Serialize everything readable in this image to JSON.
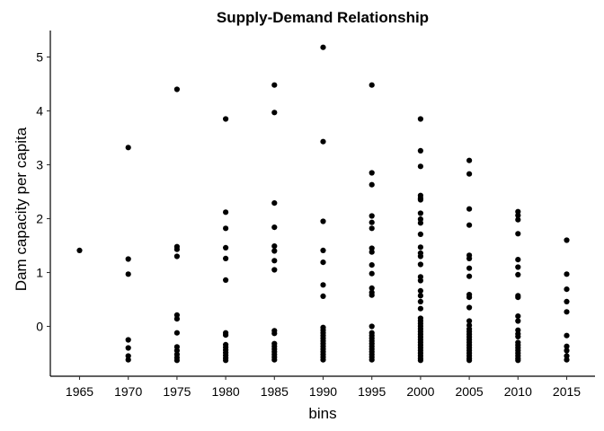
{
  "chart_data": {
    "type": "scatter",
    "title": "Supply-Demand Relationship",
    "xlabel": "bins",
    "ylabel": "Dam capacity per capita",
    "x_ticks": [
      "1965",
      "1970",
      "1975",
      "1980",
      "1985",
      "1990",
      "1995",
      "2000",
      "2005",
      "2010",
      "2015"
    ],
    "y_ticks": [
      "0",
      "1",
      "2",
      "3",
      "4",
      "5"
    ],
    "ylim": [
      -0.92,
      5.5
    ],
    "grid": false,
    "marker_color": "#000000",
    "points": [
      {
        "x": "1965",
        "y": 1.41
      },
      {
        "x": "1970",
        "y": 3.32
      },
      {
        "x": "1970",
        "y": 1.25
      },
      {
        "x": "1970",
        "y": 0.97
      },
      {
        "x": "1970",
        "y": -0.25
      },
      {
        "x": "1970",
        "y": -0.4
      },
      {
        "x": "1970",
        "y": -0.55
      },
      {
        "x": "1970",
        "y": -0.62
      },
      {
        "x": "1975",
        "y": 4.4
      },
      {
        "x": "1975",
        "y": 1.48
      },
      {
        "x": "1975",
        "y": 1.43
      },
      {
        "x": "1975",
        "y": 1.3
      },
      {
        "x": "1975",
        "y": 0.21
      },
      {
        "x": "1975",
        "y": 0.14
      },
      {
        "x": "1975",
        "y": -0.12
      },
      {
        "x": "1975",
        "y": -0.38
      },
      {
        "x": "1975",
        "y": -0.45
      },
      {
        "x": "1975",
        "y": -0.52
      },
      {
        "x": "1975",
        "y": -0.58
      },
      {
        "x": "1975",
        "y": -0.63
      },
      {
        "x": "1980",
        "y": 3.85
      },
      {
        "x": "1980",
        "y": 2.12
      },
      {
        "x": "1980",
        "y": 1.82
      },
      {
        "x": "1980",
        "y": 1.46
      },
      {
        "x": "1980",
        "y": 1.26
      },
      {
        "x": "1980",
        "y": 0.86
      },
      {
        "x": "1980",
        "y": -0.12
      },
      {
        "x": "1980",
        "y": -0.16
      },
      {
        "x": "1980",
        "y": -0.34
      },
      {
        "x": "1980",
        "y": -0.39
      },
      {
        "x": "1980",
        "y": -0.44
      },
      {
        "x": "1980",
        "y": -0.49
      },
      {
        "x": "1980",
        "y": -0.54
      },
      {
        "x": "1980",
        "y": -0.59
      },
      {
        "x": "1980",
        "y": -0.63
      },
      {
        "x": "1985",
        "y": 4.48
      },
      {
        "x": "1985",
        "y": 3.97
      },
      {
        "x": "1985",
        "y": 2.29
      },
      {
        "x": "1985",
        "y": 1.84
      },
      {
        "x": "1985",
        "y": 1.49
      },
      {
        "x": "1985",
        "y": 1.4
      },
      {
        "x": "1985",
        "y": 1.22
      },
      {
        "x": "1985",
        "y": 1.05
      },
      {
        "x": "1985",
        "y": -0.08
      },
      {
        "x": "1985",
        "y": -0.13
      },
      {
        "x": "1985",
        "y": -0.32
      },
      {
        "x": "1985",
        "y": -0.37
      },
      {
        "x": "1985",
        "y": -0.42
      },
      {
        "x": "1985",
        "y": -0.47
      },
      {
        "x": "1985",
        "y": -0.52
      },
      {
        "x": "1985",
        "y": -0.57
      },
      {
        "x": "1985",
        "y": -0.62
      },
      {
        "x": "1990",
        "y": 5.18
      },
      {
        "x": "1990",
        "y": 3.43
      },
      {
        "x": "1990",
        "y": 1.95
      },
      {
        "x": "1990",
        "y": 1.41
      },
      {
        "x": "1990",
        "y": 1.19
      },
      {
        "x": "1990",
        "y": 0.77
      },
      {
        "x": "1990",
        "y": 0.56
      },
      {
        "x": "1990",
        "y": -0.02
      },
      {
        "x": "1990",
        "y": -0.07
      },
      {
        "x": "1990",
        "y": -0.12
      },
      {
        "x": "1990",
        "y": -0.17
      },
      {
        "x": "1990",
        "y": -0.22
      },
      {
        "x": "1990",
        "y": -0.27
      },
      {
        "x": "1990",
        "y": -0.32
      },
      {
        "x": "1990",
        "y": -0.37
      },
      {
        "x": "1990",
        "y": -0.42
      },
      {
        "x": "1990",
        "y": -0.47
      },
      {
        "x": "1990",
        "y": -0.52
      },
      {
        "x": "1990",
        "y": -0.57
      },
      {
        "x": "1990",
        "y": -0.62
      },
      {
        "x": "1995",
        "y": 4.48
      },
      {
        "x": "1995",
        "y": 2.85
      },
      {
        "x": "1995",
        "y": 2.63
      },
      {
        "x": "1995",
        "y": 2.05
      },
      {
        "x": "1995",
        "y": 1.93
      },
      {
        "x": "1995",
        "y": 1.82
      },
      {
        "x": "1995",
        "y": 1.45
      },
      {
        "x": "1995",
        "y": 1.38
      },
      {
        "x": "1995",
        "y": 1.14
      },
      {
        "x": "1995",
        "y": 0.98
      },
      {
        "x": "1995",
        "y": 0.71
      },
      {
        "x": "1995",
        "y": 0.63
      },
      {
        "x": "1995",
        "y": 0.58
      },
      {
        "x": "1995",
        "y": 0.0
      },
      {
        "x": "1995",
        "y": -0.12
      },
      {
        "x": "1995",
        "y": -0.17
      },
      {
        "x": "1995",
        "y": -0.22
      },
      {
        "x": "1995",
        "y": -0.27
      },
      {
        "x": "1995",
        "y": -0.32
      },
      {
        "x": "1995",
        "y": -0.37
      },
      {
        "x": "1995",
        "y": -0.42
      },
      {
        "x": "1995",
        "y": -0.47
      },
      {
        "x": "1995",
        "y": -0.52
      },
      {
        "x": "1995",
        "y": -0.57
      },
      {
        "x": "1995",
        "y": -0.62
      },
      {
        "x": "2000",
        "y": 3.85
      },
      {
        "x": "2000",
        "y": 3.26
      },
      {
        "x": "2000",
        "y": 2.97
      },
      {
        "x": "2000",
        "y": 2.43
      },
      {
        "x": "2000",
        "y": 2.38
      },
      {
        "x": "2000",
        "y": 2.35
      },
      {
        "x": "2000",
        "y": 2.1
      },
      {
        "x": "2000",
        "y": 1.99
      },
      {
        "x": "2000",
        "y": 1.92
      },
      {
        "x": "2000",
        "y": 1.71
      },
      {
        "x": "2000",
        "y": 1.47
      },
      {
        "x": "2000",
        "y": 1.36
      },
      {
        "x": "2000",
        "y": 1.3
      },
      {
        "x": "2000",
        "y": 1.15
      },
      {
        "x": "2000",
        "y": 0.92
      },
      {
        "x": "2000",
        "y": 0.85
      },
      {
        "x": "2000",
        "y": 0.66
      },
      {
        "x": "2000",
        "y": 0.57
      },
      {
        "x": "2000",
        "y": 0.46
      },
      {
        "x": "2000",
        "y": 0.33
      },
      {
        "x": "2000",
        "y": 0.15
      },
      {
        "x": "2000",
        "y": 0.1
      },
      {
        "x": "2000",
        "y": 0.05
      },
      {
        "x": "2000",
        "y": 0.0
      },
      {
        "x": "2000",
        "y": -0.05
      },
      {
        "x": "2000",
        "y": -0.1
      },
      {
        "x": "2000",
        "y": -0.15
      },
      {
        "x": "2000",
        "y": -0.2
      },
      {
        "x": "2000",
        "y": -0.25
      },
      {
        "x": "2000",
        "y": -0.3
      },
      {
        "x": "2000",
        "y": -0.35
      },
      {
        "x": "2000",
        "y": -0.4
      },
      {
        "x": "2000",
        "y": -0.45
      },
      {
        "x": "2000",
        "y": -0.5
      },
      {
        "x": "2000",
        "y": -0.55
      },
      {
        "x": "2000",
        "y": -0.6
      },
      {
        "x": "2000",
        "y": -0.63
      },
      {
        "x": "2005",
        "y": 3.08
      },
      {
        "x": "2005",
        "y": 2.83
      },
      {
        "x": "2005",
        "y": 2.18
      },
      {
        "x": "2005",
        "y": 1.88
      },
      {
        "x": "2005",
        "y": 1.32
      },
      {
        "x": "2005",
        "y": 1.26
      },
      {
        "x": "2005",
        "y": 1.08
      },
      {
        "x": "2005",
        "y": 0.93
      },
      {
        "x": "2005",
        "y": 0.59
      },
      {
        "x": "2005",
        "y": 0.54
      },
      {
        "x": "2005",
        "y": 0.35
      },
      {
        "x": "2005",
        "y": 0.1
      },
      {
        "x": "2005",
        "y": 0.02
      },
      {
        "x": "2005",
        "y": -0.05
      },
      {
        "x": "2005",
        "y": -0.1
      },
      {
        "x": "2005",
        "y": -0.15
      },
      {
        "x": "2005",
        "y": -0.2
      },
      {
        "x": "2005",
        "y": -0.25
      },
      {
        "x": "2005",
        "y": -0.3
      },
      {
        "x": "2005",
        "y": -0.35
      },
      {
        "x": "2005",
        "y": -0.4
      },
      {
        "x": "2005",
        "y": -0.45
      },
      {
        "x": "2005",
        "y": -0.5
      },
      {
        "x": "2005",
        "y": -0.55
      },
      {
        "x": "2005",
        "y": -0.6
      },
      {
        "x": "2005",
        "y": -0.63
      },
      {
        "x": "2010",
        "y": 2.13
      },
      {
        "x": "2010",
        "y": 2.06
      },
      {
        "x": "2010",
        "y": 1.98
      },
      {
        "x": "2010",
        "y": 1.72
      },
      {
        "x": "2010",
        "y": 1.24
      },
      {
        "x": "2010",
        "y": 1.1
      },
      {
        "x": "2010",
        "y": 0.96
      },
      {
        "x": "2010",
        "y": 0.57
      },
      {
        "x": "2010",
        "y": 0.54
      },
      {
        "x": "2010",
        "y": 0.19
      },
      {
        "x": "2010",
        "y": 0.1
      },
      {
        "x": "2010",
        "y": -0.07
      },
      {
        "x": "2010",
        "y": -0.14
      },
      {
        "x": "2010",
        "y": -0.19
      },
      {
        "x": "2010",
        "y": -0.3
      },
      {
        "x": "2010",
        "y": -0.35
      },
      {
        "x": "2010",
        "y": -0.4
      },
      {
        "x": "2010",
        "y": -0.45
      },
      {
        "x": "2010",
        "y": -0.5
      },
      {
        "x": "2010",
        "y": -0.55
      },
      {
        "x": "2010",
        "y": -0.6
      },
      {
        "x": "2010",
        "y": -0.63
      },
      {
        "x": "2015",
        "y": 1.6
      },
      {
        "x": "2015",
        "y": 0.97
      },
      {
        "x": "2015",
        "y": 0.69
      },
      {
        "x": "2015",
        "y": 0.46
      },
      {
        "x": "2015",
        "y": 0.27
      },
      {
        "x": "2015",
        "y": -0.17
      },
      {
        "x": "2015",
        "y": -0.37
      },
      {
        "x": "2015",
        "y": -0.45
      },
      {
        "x": "2015",
        "y": -0.55
      },
      {
        "x": "2015",
        "y": -0.62
      }
    ]
  }
}
